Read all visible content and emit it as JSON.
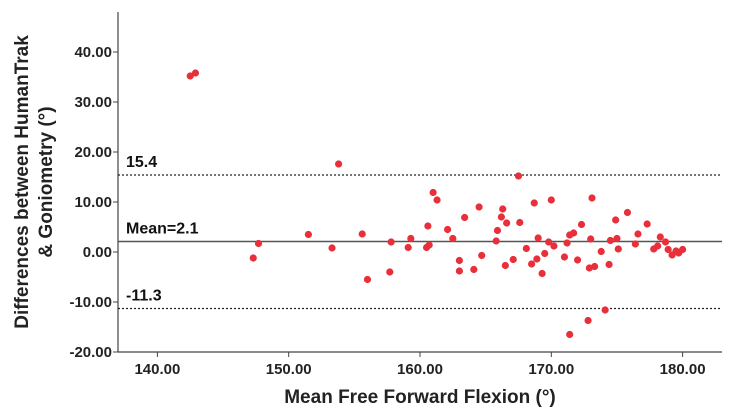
{
  "chart_data": {
    "type": "scatter",
    "title": "",
    "xlabel": "Mean Free Forward Flexion (°)",
    "ylabel_lines": [
      "Differences between HumanTrak",
      "& Goniometry (°)"
    ],
    "xlim": [
      137,
      183
    ],
    "ylim": [
      -20,
      48
    ],
    "x_ticks": [
      140,
      150,
      160,
      170,
      180
    ],
    "x_tick_labels": [
      "140.00",
      "150.00",
      "160.00",
      "170.00",
      "180.00"
    ],
    "y_ticks": [
      40,
      30,
      20,
      10,
      0,
      -10,
      -20
    ],
    "y_tick_labels": [
      "40.00",
      "30.00",
      "20.00",
      "10.00",
      "0.00",
      "-10.00",
      "-20.00"
    ],
    "grid": false,
    "point_color": "#e8303a",
    "reference_lines": [
      {
        "value": 15.4,
        "label": "15.4",
        "style": "dotted"
      },
      {
        "value": 2.1,
        "label": "Mean=2.1",
        "style": "solid"
      },
      {
        "value": -11.3,
        "label": "-11.3",
        "style": "dotted"
      }
    ],
    "points": [
      [
        142.5,
        35.2
      ],
      [
        142.9,
        35.8
      ],
      [
        147.3,
        -1.2
      ],
      [
        147.7,
        1.7
      ],
      [
        151.5,
        3.5
      ],
      [
        153.3,
        0.8
      ],
      [
        153.8,
        17.6
      ],
      [
        155.6,
        3.6
      ],
      [
        156.0,
        -5.5
      ],
      [
        157.7,
        -4.0
      ],
      [
        157.8,
        2.0
      ],
      [
        159.1,
        0.9
      ],
      [
        159.3,
        2.7
      ],
      [
        160.5,
        0.9
      ],
      [
        160.6,
        5.2
      ],
      [
        160.7,
        1.4
      ],
      [
        161.0,
        11.9
      ],
      [
        161.3,
        10.4
      ],
      [
        162.1,
        4.5
      ],
      [
        162.5,
        2.7
      ],
      [
        163.0,
        -1.7
      ],
      [
        163.0,
        -3.8
      ],
      [
        163.4,
        6.9
      ],
      [
        164.1,
        -3.5
      ],
      [
        164.5,
        9.0
      ],
      [
        164.7,
        -0.7
      ],
      [
        165.8,
        2.2
      ],
      [
        165.9,
        4.3
      ],
      [
        166.2,
        7.0
      ],
      [
        166.3,
        8.6
      ],
      [
        166.5,
        -2.7
      ],
      [
        166.6,
        5.8
      ],
      [
        167.1,
        -1.5
      ],
      [
        167.5,
        15.2
      ],
      [
        167.6,
        5.9
      ],
      [
        168.1,
        0.7
      ],
      [
        168.5,
        -2.4
      ],
      [
        168.7,
        9.8
      ],
      [
        168.9,
        -1.4
      ],
      [
        169.0,
        2.8
      ],
      [
        169.3,
        -4.3
      ],
      [
        169.5,
        -0.3
      ],
      [
        169.8,
        2.0
      ],
      [
        170.0,
        10.4
      ],
      [
        170.2,
        1.2
      ],
      [
        171.0,
        -1.0
      ],
      [
        171.2,
        1.8
      ],
      [
        171.4,
        3.4
      ],
      [
        171.4,
        -16.5
      ],
      [
        171.7,
        3.8
      ],
      [
        172.0,
        -1.6
      ],
      [
        172.3,
        5.5
      ],
      [
        172.8,
        -13.7
      ],
      [
        172.9,
        -3.2
      ],
      [
        173.0,
        2.6
      ],
      [
        173.1,
        10.8
      ],
      [
        173.3,
        -2.9
      ],
      [
        173.8,
        0.1
      ],
      [
        174.1,
        -11.6
      ],
      [
        174.4,
        -2.5
      ],
      [
        174.5,
        2.3
      ],
      [
        174.9,
        6.4
      ],
      [
        175.0,
        2.7
      ],
      [
        175.1,
        0.6
      ],
      [
        175.8,
        7.9
      ],
      [
        176.4,
        1.6
      ],
      [
        176.6,
        3.6
      ],
      [
        177.3,
        5.6
      ],
      [
        177.8,
        0.6
      ],
      [
        178.1,
        1.2
      ],
      [
        178.3,
        3.0
      ],
      [
        178.7,
        2.0
      ],
      [
        178.9,
        0.5
      ],
      [
        179.2,
        -0.6
      ],
      [
        179.5,
        0.2
      ],
      [
        179.7,
        -0.2
      ],
      [
        180.0,
        0.5
      ]
    ]
  }
}
